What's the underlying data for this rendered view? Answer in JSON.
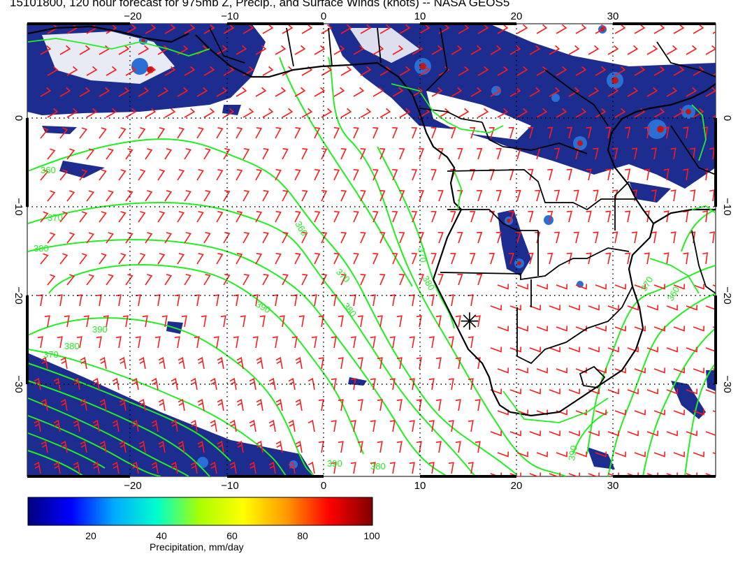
{
  "title": "15101800, 120 hour forecast for 975mb Z, Precip., and Surface Winds (knots) -- NASA GEOS5",
  "map": {
    "lon_range": [
      -31,
      40
    ],
    "lat_range": [
      -40,
      10
    ],
    "grid": "dotted",
    "top_lon_ticks": [
      "−20",
      "−10",
      "0",
      "10",
      "20",
      "30"
    ],
    "bottom_lon_ticks": [
      "−20",
      "−10",
      "0",
      "10",
      "20",
      "30"
    ],
    "lat_ticks": [
      "0",
      "−10",
      "−20",
      "−30"
    ],
    "contour_labels": [
      "360",
      "370",
      "380",
      "390",
      "380",
      "370",
      "360",
      "370",
      "380",
      "370",
      "380",
      "390",
      "390",
      "380",
      "370",
      "360",
      "390"
    ],
    "marker": "✳",
    "colors": {
      "contour": "#22ee22",
      "wind_barb": "#ff1a1a",
      "coast": "#000000",
      "precip_light": "#1d2c8f",
      "precip_mid": "#2a6fd6",
      "precip_high": "#c01818"
    }
  },
  "colorbar": {
    "ticks": [
      "20",
      "40",
      "60",
      "80",
      "100"
    ],
    "range": [
      0,
      100
    ],
    "label": "Precipitation, mm/day",
    "stops": [
      "#00007f",
      "#0000ff",
      "#00aaff",
      "#00ffcc",
      "#aaff00",
      "#ffff00",
      "#ff9900",
      "#ff0000",
      "#7f0000"
    ]
  }
}
